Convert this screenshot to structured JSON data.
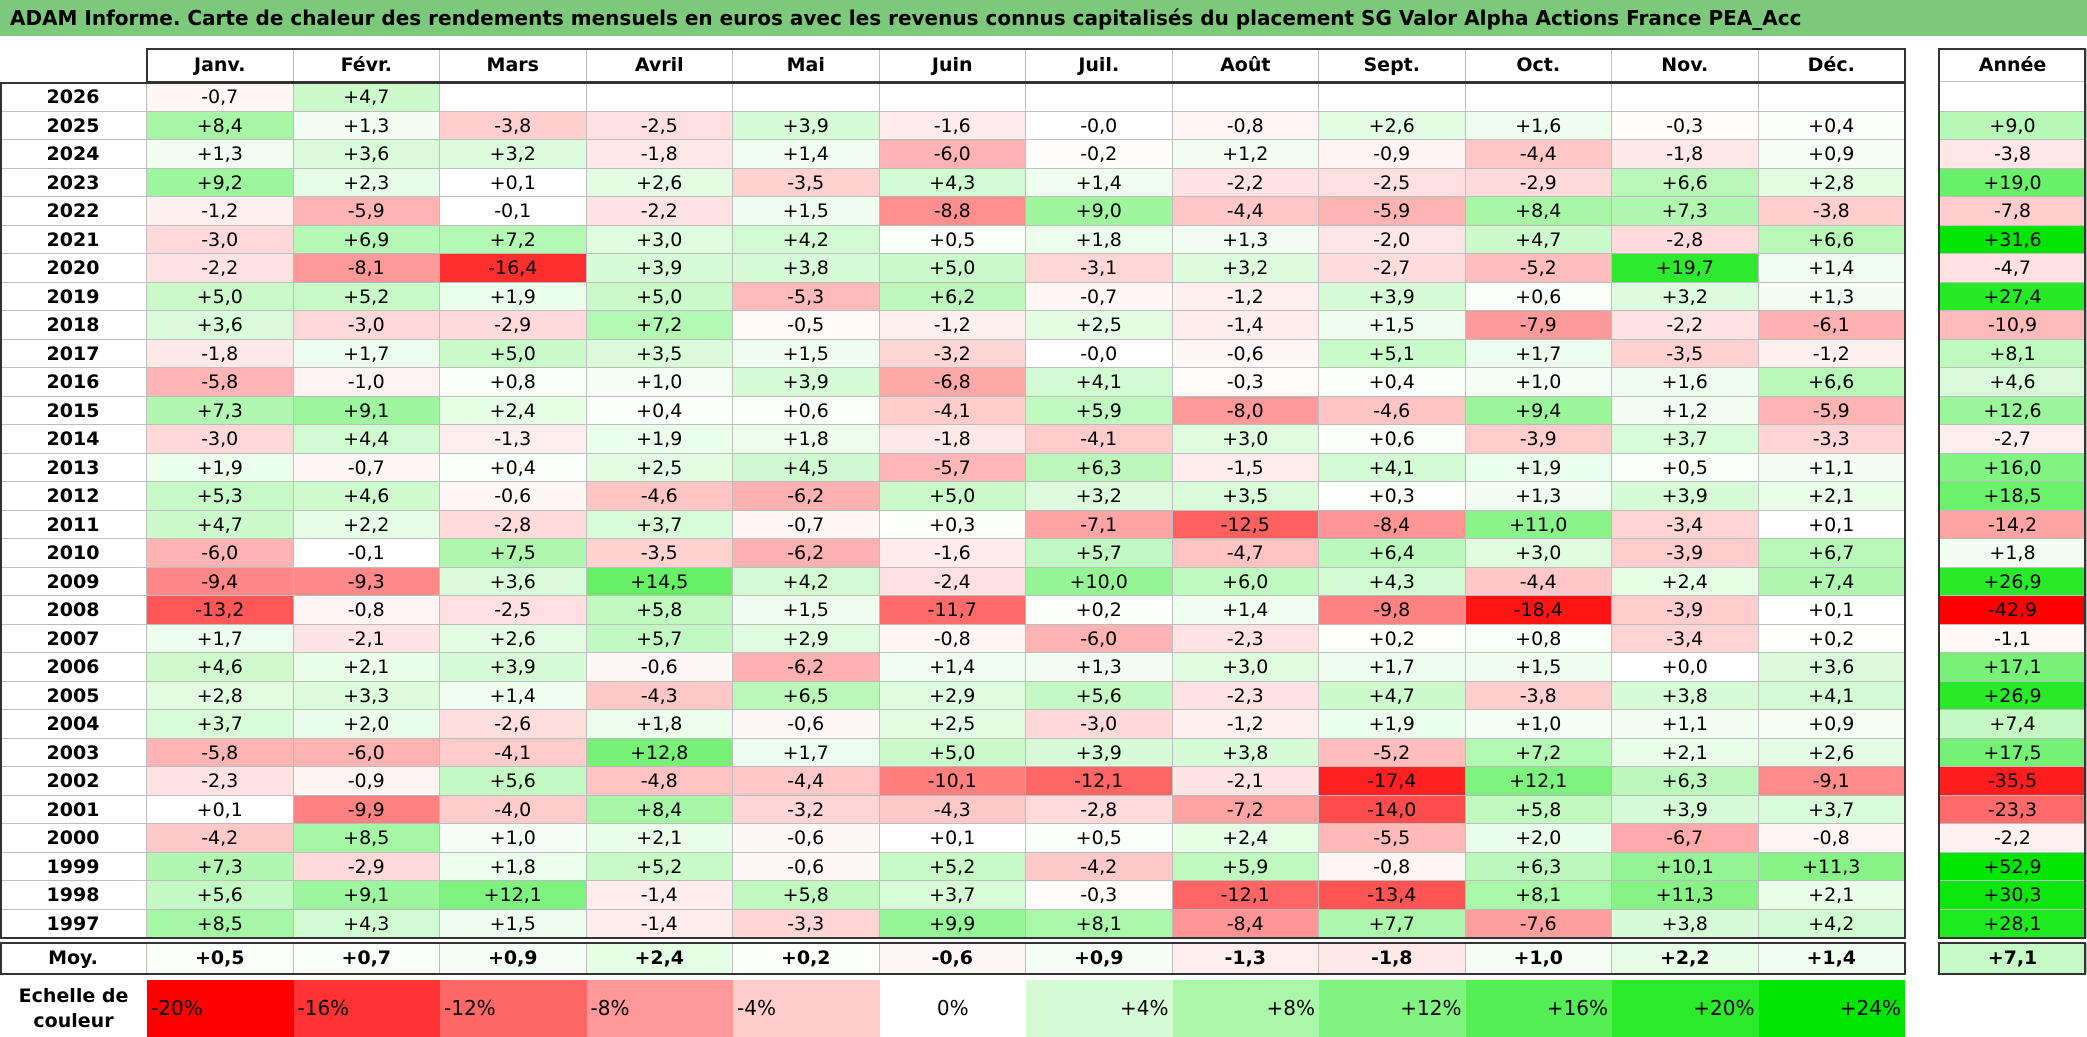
{
  "title": "ADAM Informe. Carte de chaleur des rendements mensuels en euros avec les revenus connus capitalisés du placement SG Valor Alpha Actions France PEA_Acc",
  "chart_data": {
    "type": "heatmap",
    "columns": [
      "Janv.",
      "Févr.",
      "Mars",
      "Avril",
      "Mai",
      "Juin",
      "Juil.",
      "Août",
      "Sept.",
      "Oct.",
      "Nov.",
      "Déc."
    ],
    "year_column_label": "Année",
    "rows": [
      {
        "year": "2026",
        "months": [
          "-0,7",
          "+4,7",
          "",
          "",
          "",
          "",
          "",
          "",
          "",
          "",
          "",
          ""
        ],
        "annual": ""
      },
      {
        "year": "2025",
        "months": [
          "+8,4",
          "+1,3",
          "-3,8",
          "-2,5",
          "+3,9",
          "-1,6",
          "-0,0",
          "-0,8",
          "+2,6",
          "+1,6",
          "-0,3",
          "+0,4"
        ],
        "annual": "+9,0"
      },
      {
        "year": "2024",
        "months": [
          "+1,3",
          "+3,6",
          "+3,2",
          "-1,8",
          "+1,4",
          "-6,0",
          "-0,2",
          "+1,2",
          "-0,9",
          "-4,4",
          "-1,8",
          "+0,9"
        ],
        "annual": "-3,8"
      },
      {
        "year": "2023",
        "months": [
          "+9,2",
          "+2,3",
          "+0,1",
          "+2,6",
          "-3,5",
          "+4,3",
          "+1,4",
          "-2,2",
          "-2,5",
          "-2,9",
          "+6,6",
          "+2,8"
        ],
        "annual": "+19,0"
      },
      {
        "year": "2022",
        "months": [
          "-1,2",
          "-5,9",
          "-0,1",
          "-2,2",
          "+1,5",
          "-8,8",
          "+9,0",
          "-4,4",
          "-5,9",
          "+8,4",
          "+7,3",
          "-3,8"
        ],
        "annual": "-7,8"
      },
      {
        "year": "2021",
        "months": [
          "-3,0",
          "+6,9",
          "+7,2",
          "+3,0",
          "+4,2",
          "+0,5",
          "+1,8",
          "+1,3",
          "-2,0",
          "+4,7",
          "-2,8",
          "+6,6"
        ],
        "annual": "+31,6"
      },
      {
        "year": "2020",
        "months": [
          "-2,2",
          "-8,1",
          "-16,4",
          "+3,9",
          "+3,8",
          "+5,0",
          "-3,1",
          "+3,2",
          "-2,7",
          "-5,2",
          "+19,7",
          "+1,4"
        ],
        "annual": "-4,7"
      },
      {
        "year": "2019",
        "months": [
          "+5,0",
          "+5,2",
          "+1,9",
          "+5,0",
          "-5,3",
          "+6,2",
          "-0,7",
          "-1,2",
          "+3,9",
          "+0,6",
          "+3,2",
          "+1,3"
        ],
        "annual": "+27,4"
      },
      {
        "year": "2018",
        "months": [
          "+3,6",
          "-3,0",
          "-2,9",
          "+7,2",
          "-0,5",
          "-1,2",
          "+2,5",
          "-1,4",
          "+1,5",
          "-7,9",
          "-2,2",
          "-6,1"
        ],
        "annual": "-10,9"
      },
      {
        "year": "2017",
        "months": [
          "-1,8",
          "+1,7",
          "+5,0",
          "+3,5",
          "+1,5",
          "-3,2",
          "-0,0",
          "-0,6",
          "+5,1",
          "+1,7",
          "-3,5",
          "-1,2"
        ],
        "annual": "+8,1"
      },
      {
        "year": "2016",
        "months": [
          "-5,8",
          "-1,0",
          "+0,8",
          "+1,0",
          "+3,9",
          "-6,8",
          "+4,1",
          "-0,3",
          "+0,4",
          "+1,0",
          "+1,6",
          "+6,6"
        ],
        "annual": "+4,6"
      },
      {
        "year": "2015",
        "months": [
          "+7,3",
          "+9,1",
          "+2,4",
          "+0,4",
          "+0,6",
          "-4,1",
          "+5,9",
          "-8,0",
          "-4,6",
          "+9,4",
          "+1,2",
          "-5,9"
        ],
        "annual": "+12,6"
      },
      {
        "year": "2014",
        "months": [
          "-3,0",
          "+4,4",
          "-1,3",
          "+1,9",
          "+1,8",
          "-1,8",
          "-4,1",
          "+3,0",
          "+0,6",
          "-3,9",
          "+3,7",
          "-3,3"
        ],
        "annual": "-2,7"
      },
      {
        "year": "2013",
        "months": [
          "+1,9",
          "-0,7",
          "+0,4",
          "+2,5",
          "+4,5",
          "-5,7",
          "+6,3",
          "-1,5",
          "+4,1",
          "+1,9",
          "+0,5",
          "+1,1"
        ],
        "annual": "+16,0"
      },
      {
        "year": "2012",
        "months": [
          "+5,3",
          "+4,6",
          "-0,6",
          "-4,6",
          "-6,2",
          "+5,0",
          "+3,2",
          "+3,5",
          "+0,3",
          "+1,3",
          "+3,9",
          "+2,1"
        ],
        "annual": "+18,5"
      },
      {
        "year": "2011",
        "months": [
          "+4,7",
          "+2,2",
          "-2,8",
          "+3,7",
          "-0,7",
          "+0,3",
          "-7,1",
          "-12,5",
          "-8,4",
          "+11,0",
          "-3,4",
          "+0,1"
        ],
        "annual": "-14,2"
      },
      {
        "year": "2010",
        "months": [
          "-6,0",
          "-0,1",
          "+7,5",
          "-3,5",
          "-6,2",
          "-1,6",
          "+5,7",
          "-4,7",
          "+6,4",
          "+3,0",
          "-3,9",
          "+6,7"
        ],
        "annual": "+1,8"
      },
      {
        "year": "2009",
        "months": [
          "-9,4",
          "-9,3",
          "+3,6",
          "+14,5",
          "+4,2",
          "-2,4",
          "+10,0",
          "+6,0",
          "+4,3",
          "-4,4",
          "+2,4",
          "+7,4"
        ],
        "annual": "+26,9"
      },
      {
        "year": "2008",
        "months": [
          "-13,2",
          "-0,8",
          "-2,5",
          "+5,8",
          "+1,5",
          "-11,7",
          "+0,2",
          "+1,4",
          "-9,8",
          "-18,4",
          "-3,9",
          "+0,1"
        ],
        "annual": "-42,9"
      },
      {
        "year": "2007",
        "months": [
          "+1,7",
          "-2,1",
          "+2,6",
          "+5,7",
          "+2,9",
          "-0,8",
          "-6,0",
          "-2,3",
          "+0,2",
          "+0,8",
          "-3,4",
          "+0,2"
        ],
        "annual": "-1,1"
      },
      {
        "year": "2006",
        "months": [
          "+4,6",
          "+2,1",
          "+3,9",
          "-0,6",
          "-6,2",
          "+1,4",
          "+1,3",
          "+3,0",
          "+1,7",
          "+1,5",
          "+0,0",
          "+3,6"
        ],
        "annual": "+17,1"
      },
      {
        "year": "2005",
        "months": [
          "+2,8",
          "+3,3",
          "+1,4",
          "-4,3",
          "+6,5",
          "+2,9",
          "+5,6",
          "-2,3",
          "+4,7",
          "-3,8",
          "+3,8",
          "+4,1"
        ],
        "annual": "+26,9"
      },
      {
        "year": "2004",
        "months": [
          "+3,7",
          "+2,0",
          "-2,6",
          "+1,8",
          "-0,6",
          "+2,5",
          "-3,0",
          "-1,2",
          "+1,9",
          "+1,0",
          "+1,1",
          "+0,9"
        ],
        "annual": "+7,4"
      },
      {
        "year": "2003",
        "months": [
          "-5,8",
          "-6,0",
          "-4,1",
          "+12,8",
          "+1,7",
          "+5,0",
          "+3,9",
          "+3,8",
          "-5,2",
          "+7,2",
          "+2,1",
          "+2,6"
        ],
        "annual": "+17,5"
      },
      {
        "year": "2002",
        "months": [
          "-2,3",
          "-0,9",
          "+5,6",
          "-4,8",
          "-4,4",
          "-10,1",
          "-12,1",
          "-2,1",
          "-17,4",
          "+12,1",
          "+6,3",
          "-9,1"
        ],
        "annual": "-35,5"
      },
      {
        "year": "2001",
        "months": [
          "+0,1",
          "-9,9",
          "-4,0",
          "+8,4",
          "-3,2",
          "-4,3",
          "-2,8",
          "-7,2",
          "-14,0",
          "+5,8",
          "+3,9",
          "+3,7"
        ],
        "annual": "-23,3"
      },
      {
        "year": "2000",
        "months": [
          "-4,2",
          "+8,5",
          "+1,0",
          "+2,1",
          "-0,6",
          "+0,1",
          "+0,5",
          "+2,4",
          "-5,5",
          "+2,0",
          "-6,7",
          "-0,8"
        ],
        "annual": "-2,2"
      },
      {
        "year": "1999",
        "months": [
          "+7,3",
          "-2,9",
          "+1,8",
          "+5,2",
          "-0,6",
          "+5,2",
          "-4,2",
          "+5,9",
          "-0,8",
          "+6,3",
          "+10,1",
          "+11,3"
        ],
        "annual": "+52,9"
      },
      {
        "year": "1998",
        "months": [
          "+5,6",
          "+9,1",
          "+12,1",
          "-1,4",
          "+5,8",
          "+3,7",
          "-0,3",
          "-12,1",
          "-13,4",
          "+8,1",
          "+11,3",
          "+2,1"
        ],
        "annual": "+30,3"
      },
      {
        "year": "1997",
        "months": [
          "+8,5",
          "+4,3",
          "+1,5",
          "-1,4",
          "-3,3",
          "+9,9",
          "+8,1",
          "-8,4",
          "+7,7",
          "-7,6",
          "+3,8",
          "+4,2"
        ],
        "annual": "+28,1"
      }
    ],
    "average_row": {
      "label": "Moy.",
      "months": [
        "+0,5",
        "+0,7",
        "+0,9",
        "+2,4",
        "+0,2",
        "-0,6",
        "+0,9",
        "-1,3",
        "-1,8",
        "+1,0",
        "+2,2",
        "+1,4"
      ],
      "annual": "+7,1"
    },
    "color_scale": {
      "label": "Echelle de couleur",
      "steps": [
        "-20%",
        "-16%",
        "-12%",
        "-8%",
        "-4%",
        "0%",
        "+4%",
        "+8%",
        "+12%",
        "+16%",
        "+20%",
        "+24%"
      ],
      "values": [
        -20,
        -16,
        -12,
        -8,
        -4,
        0,
        4,
        8,
        12,
        16,
        20,
        24
      ],
      "negative_color": "#ff0000",
      "positive_color": "#00e600",
      "neutral_color": "#ffffff"
    }
  }
}
